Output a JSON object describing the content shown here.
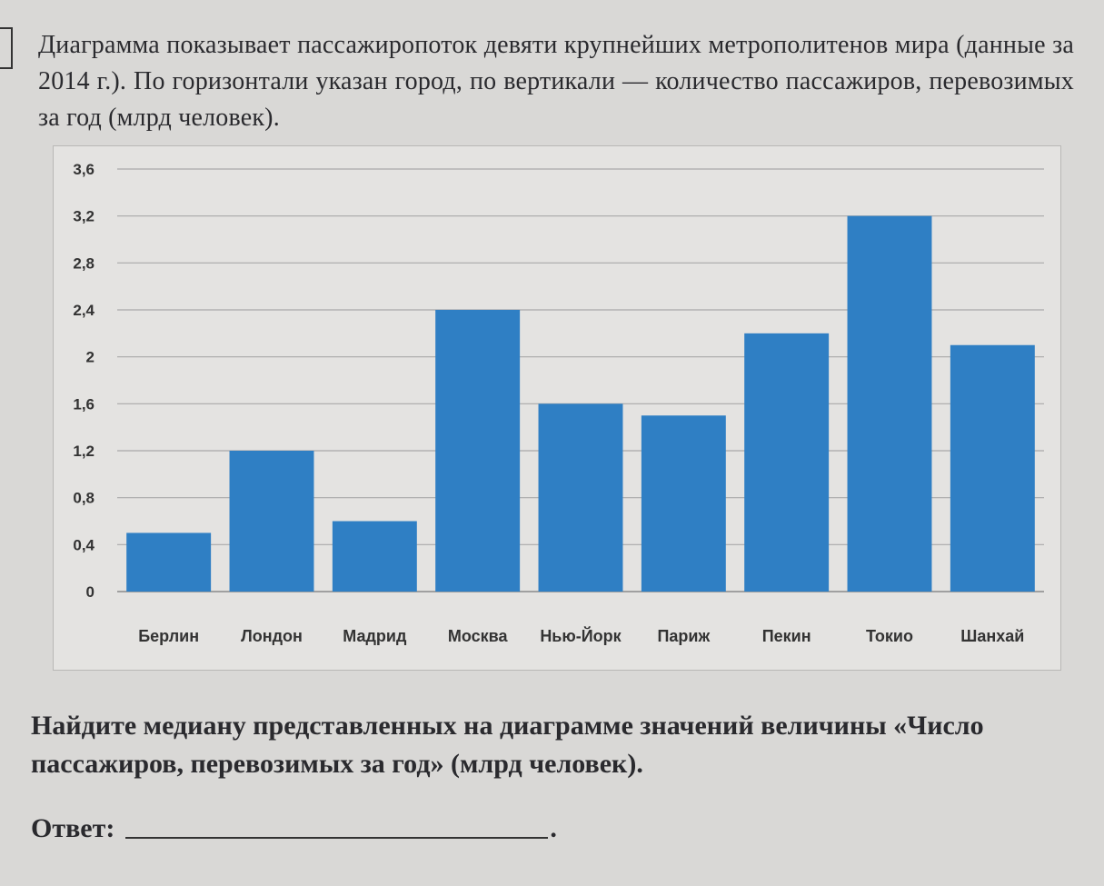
{
  "task": {
    "intro": "Диаграмма показывает пассажиропоток девяти крупнейших метрополитенов мира (данные за 2014 г.). По горизонтали указан город, по вертикали — количество пассажиров, перевозимых за год (млрд человек).",
    "question": "Найдите медиану представленных на диаграмме значений величины «Число пассажиров, перевозимых за год» (млрд человек).",
    "answer_label": "Ответ:",
    "answer_end": "."
  },
  "chart_data": {
    "type": "bar",
    "title": "",
    "xlabel": "",
    "ylabel": "",
    "categories": [
      "Берлин",
      "Лондон",
      "Мадрид",
      "Москва",
      "Нью-Йорк",
      "Париж",
      "Пекин",
      "Токио",
      "Шанхай"
    ],
    "values": [
      0.5,
      1.2,
      0.6,
      2.4,
      1.6,
      1.5,
      2.2,
      3.2,
      2.1
    ],
    "ylim": [
      0,
      3.6
    ],
    "yticks": [
      "0",
      "0,4",
      "0,8",
      "1,2",
      "1,6",
      "2",
      "2,4",
      "2,8",
      "3,2",
      "3,6"
    ],
    "grid": true,
    "legend": "none",
    "bar_color": "#2f7fc4"
  }
}
